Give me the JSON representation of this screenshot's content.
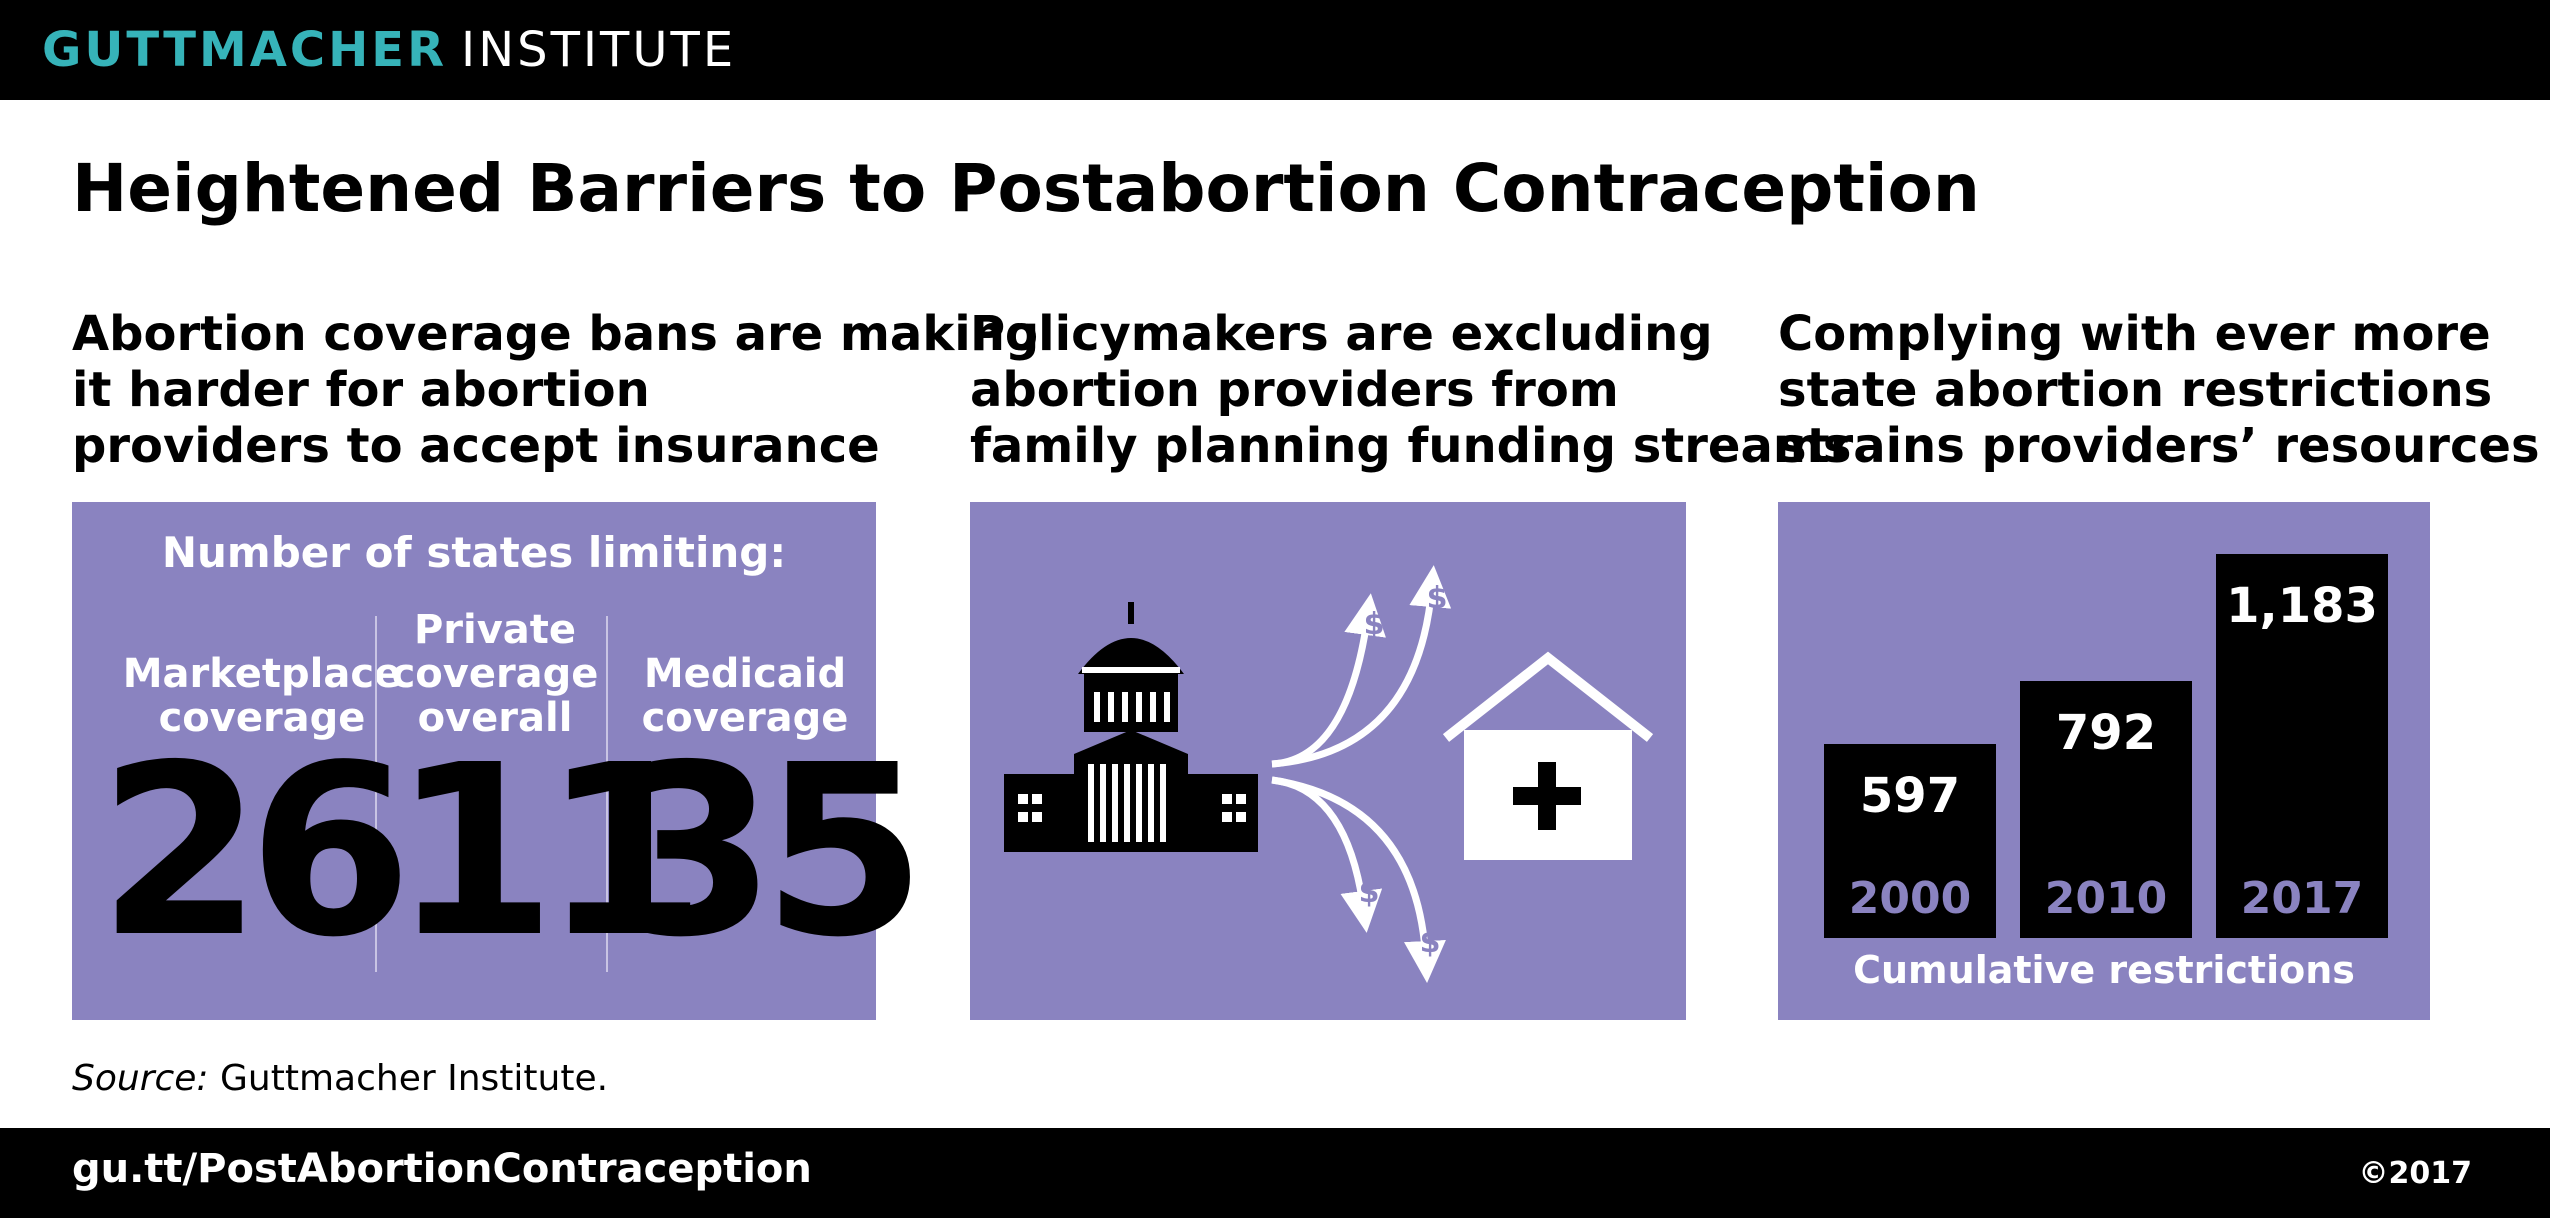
{
  "header": {
    "brand_bold": "GUTTMACHER",
    "brand_regular": "INSTITUTE"
  },
  "title": "Heightened Barriers to Postabortion Contraception",
  "columns": [
    {
      "lines": [
        "Abortion coverage bans are making",
        "it harder for abortion",
        "providers to accept insurance"
      ]
    },
    {
      "lines": [
        "Policymakers are excluding",
        "abortion providers from",
        "family planning funding streams"
      ]
    },
    {
      "lines": [
        "Complying with ever more",
        "state abortion restrictions",
        "strains providers’ resources"
      ]
    }
  ],
  "coverage_panel": {
    "heading": "Number of states limiting:",
    "items": [
      {
        "label_lines": [
          "Marketplace",
          "coverage"
        ],
        "value": "26"
      },
      {
        "label_lines": [
          "Private",
          "coverage",
          "overall"
        ],
        "value": "11"
      },
      {
        "label_lines": [
          "Medicaid",
          "coverage"
        ],
        "value": "35"
      }
    ]
  },
  "funding_panel": {
    "icons": [
      "capitol-building-icon",
      "clinic-cross-icon",
      "dollar-arrow-icon"
    ],
    "dollar_symbol": "$"
  },
  "colors": {
    "accent": "#36b3b9",
    "panel": "#8a83c0",
    "bar": "#000000"
  },
  "chart_data": {
    "type": "bar",
    "categories": [
      "2000",
      "2010",
      "2017"
    ],
    "values": [
      597,
      792,
      1183
    ],
    "value_labels": [
      "597",
      "792",
      "1,183"
    ],
    "xlabel": "Cumulative restrictions",
    "ylim": [
      0,
      1183
    ],
    "grid": false
  },
  "source": {
    "label": "Source:",
    "text": "Guttmacher Institute."
  },
  "footer": {
    "url": "gu.tt/PostAbortionContraception",
    "copyright": "©2017"
  }
}
